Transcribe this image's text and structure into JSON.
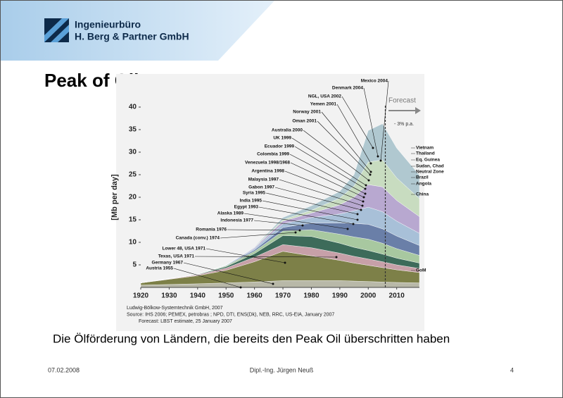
{
  "header": {
    "line1": "Ingenieurbüro",
    "line2": "H. Berg & Partner GmbH"
  },
  "title": "Peak of Oil",
  "chart_data": {
    "type": "area",
    "stacked": true,
    "ylabel": "[Mb per day]",
    "xlim": [
      1920,
      2018
    ],
    "ylim": [
      0,
      40
    ],
    "xticks": [
      1920,
      1930,
      1940,
      1950,
      1960,
      1970,
      1980,
      1990,
      2000,
      2010
    ],
    "yticks": [
      5,
      10,
      15,
      20,
      25,
      30,
      35,
      40
    ],
    "x": [
      1920,
      1940,
      1950,
      1960,
      1970,
      1980,
      1990,
      1995,
      2000,
      2005,
      2010,
      2018
    ],
    "series": [
      {
        "color": "#b8b8a8",
        "values": [
          0.5,
          0.8,
          1,
          1.2,
          1.5,
          1.5,
          1.5,
          1.4,
          1.3,
          1.2,
          1.1,
          1.0
        ]
      },
      {
        "color": "#7d8048",
        "values": [
          0.5,
          1.8,
          2.8,
          4.5,
          6.5,
          5.5,
          4.5,
          4,
          3.6,
          3.2,
          2.8,
          2.3
        ]
      },
      {
        "color": "#c7a0a8",
        "values": [
          0,
          0.2,
          0.5,
          1,
          1.5,
          1.8,
          1.6,
          1.5,
          1.4,
          1.3,
          1.1,
          0.9
        ]
      },
      {
        "color": "#3d6b5a",
        "values": [
          0,
          0.1,
          0.3,
          0.8,
          2,
          2.5,
          2.2,
          2,
          1.9,
          1.7,
          1.5,
          1.2
        ]
      },
      {
        "color": "#a8c8a0",
        "values": [
          0,
          0,
          0.2,
          0.5,
          1,
          1.5,
          2,
          2.3,
          2.5,
          2.4,
          2.1,
          1.7
        ]
      },
      {
        "color": "#6a7fa8",
        "values": [
          0,
          0,
          0.1,
          0.3,
          0.8,
          1.5,
          2.5,
          3,
          3.3,
          3.2,
          2.8,
          2.2
        ]
      },
      {
        "color": "#a8c0d8",
        "values": [
          0,
          0,
          0.1,
          0.3,
          0.8,
          1.2,
          2,
          2.8,
          3.8,
          3.8,
          3.3,
          2.7
        ]
      },
      {
        "color": "#b8a8d0",
        "values": [
          0,
          0,
          0,
          0.2,
          0.6,
          1,
          2,
          3,
          5,
          5.5,
          4.6,
          3.7
        ]
      },
      {
        "color": "#c8dcc0",
        "values": [
          0,
          0,
          0,
          0.1,
          0.3,
          0.6,
          1.5,
          2.5,
          5,
          6,
          5,
          4
        ]
      },
      {
        "color": "#b0c8d0",
        "values": [
          0,
          0,
          0,
          0.1,
          0.5,
          1,
          1.5,
          2.5,
          7,
          8,
          6.6,
          5.2
        ]
      }
    ],
    "annotations": [
      "Mexico 2004",
      "Denmark 2004",
      "NGL, USA 2002",
      "Yemen 2001",
      "Norway 2001",
      "Oman 2001",
      "Australia 2000",
      "UK 1999",
      "Ecuador 1999",
      "Colombia 1999",
      "Venezuela 1998/1968",
      "Argentina 1998",
      "Malaysia 1997",
      "Gabon 1997",
      "Syria 1995",
      "India 1995",
      "Egypt 1993",
      "Alaska 1989",
      "Indonesia 1977",
      "Romania 1976",
      "Canada (conv.) 1974",
      "Lower 48, USA 1971",
      "Texas, USA 1971",
      "Germany 1967",
      "Austria 1955"
    ],
    "right_labels": [
      "Vietnam",
      "Thailand",
      "Eq. Guinea",
      "Sudan, Chad",
      "Neutral Zone",
      "Brazil",
      "Angola",
      "China",
      "GoM"
    ],
    "forecast_start": 2006,
    "forecast_label": "Forecast",
    "forecast_rate": "- 3% p.a.",
    "source": [
      "Ludwig-Bölkow-Systemtechnik GmbH, 2007",
      "Source: IHS 2006; PEMEX, petrobras ; NPD, DTI, ENS(Dk), NEB, RRC, US-EIA, January 2007",
      "Forecast: LBST estimate, 25 January 2007"
    ]
  },
  "caption": "Die Ölförderung von Ländern, die bereits den Peak Oil überschritten haben",
  "footer": {
    "date": "07.02.2008",
    "author": "Dipl.-Ing. Jürgen Neuß",
    "page": "4"
  }
}
